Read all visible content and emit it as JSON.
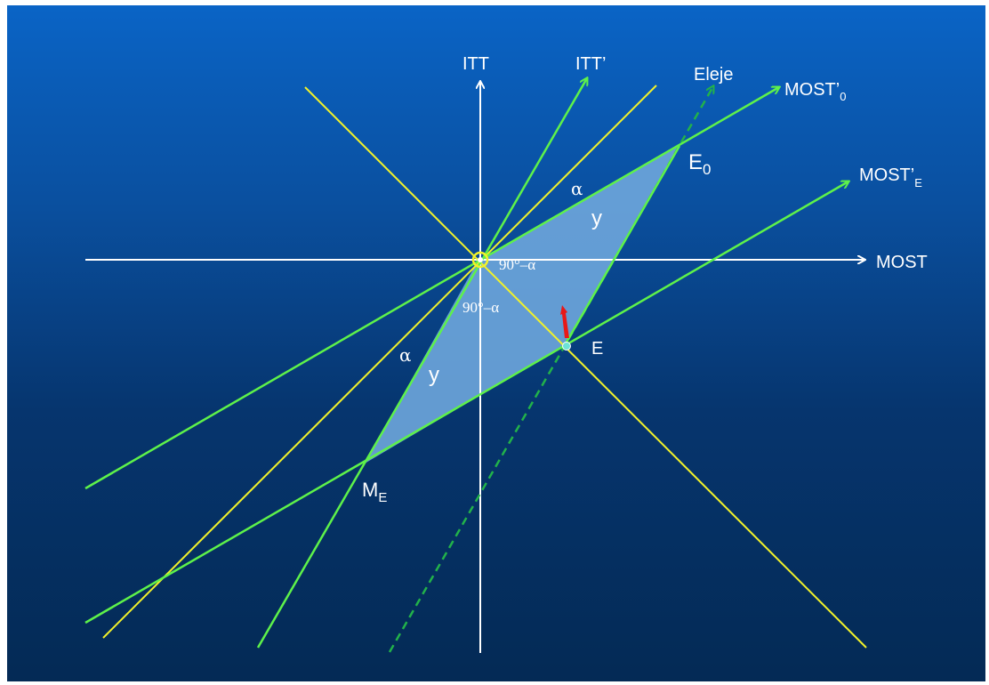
{
  "labels": {
    "itt": "ITT",
    "itt_prime": "ITT’",
    "eleje": "Eleje",
    "most0_main": "MOST’",
    "most0_sub": "0",
    "moste_main": "MOST’",
    "moste_sub": "E",
    "most": "MOST",
    "e0_main": "E",
    "e0_sub": "0",
    "e": "E",
    "me_main": "M",
    "me_sub": "E",
    "alpha_top": "α",
    "y_top": "y",
    "angle_right": "90°–α",
    "angle_below": "90°–α",
    "alpha_left": "α",
    "y_left": "y"
  },
  "colors": {
    "background_top": "#0a64c6",
    "background_bottom": "#042a55",
    "axes": "#ffffff",
    "yellow_lines": "#f2f22a",
    "green_lines": "#5ef24a",
    "eleje_line": "#22b24a",
    "parallelogram_fill": "#6ea6dc",
    "arrow_red": "#e81818"
  }
}
